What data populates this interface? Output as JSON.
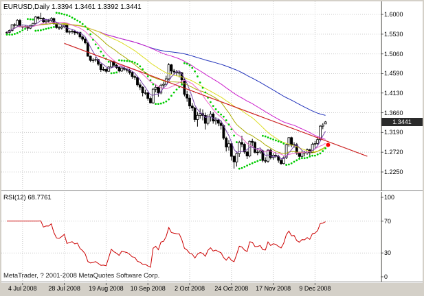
{
  "main": {
    "title": "EURUSD,Daily 1.3394 1.3461 1.3392 1.3441",
    "current_price": "1.3441"
  },
  "rsi": {
    "label": "RSI(12) 68.7761"
  },
  "footer": {
    "copyright": "MetaTrader, ? 2001-2008 MetaQuotes Software Corp."
  },
  "colors": {
    "background": "#ffffff",
    "frame": "#d4d0c8",
    "grid": "#c9c9c9",
    "axis_text": "#000000",
    "candle": "#000000",
    "price_tag_bg": "#2b2b2b",
    "price_tag_text": "#ffffff"
  },
  "chart_data": {
    "type": "candlestick",
    "symbol": "EURUSD",
    "timeframe": "Daily",
    "current_bar": {
      "open": 1.3394,
      "high": 1.3461,
      "low": 1.3392,
      "close": 1.3441
    },
    "price_axis": {
      "ticks": [
        1.6,
        1.553,
        1.506,
        1.459,
        1.413,
        1.366,
        1.319,
        1.272,
        1.225
      ],
      "top_price": 1.631,
      "bottom_price": 1.181
    },
    "x_axis": {
      "tick_labels": [
        "4 Jul 2008",
        "28 Jul 2008",
        "19 Aug 2008",
        "10 Sep 2008",
        "2 Oct 2008",
        "24 Oct 2008",
        "17 Nov 2008",
        "9 Dec 2008"
      ],
      "tick_indices": [
        6,
        22,
        38,
        54,
        70,
        86,
        102,
        118
      ]
    },
    "candles": [
      [
        1.556,
        1.56,
        1.552,
        1.5572
      ],
      [
        1.5572,
        1.564,
        1.555,
        1.5616
      ],
      [
        1.5616,
        1.5765,
        1.559,
        1.5755
      ],
      [
        1.5755,
        1.579,
        1.568,
        1.574
      ],
      [
        1.574,
        1.5885,
        1.57,
        1.586
      ],
      [
        1.586,
        1.589,
        1.569,
        1.5708
      ],
      [
        1.5708,
        1.573,
        1.566,
        1.5702
      ],
      [
        1.5702,
        1.5745,
        1.5672,
        1.5713
      ],
      [
        1.5713,
        1.573,
        1.561,
        1.5672
      ],
      [
        1.5672,
        1.5755,
        1.565,
        1.5737
      ],
      [
        1.5737,
        1.5805,
        1.571,
        1.5784
      ],
      [
        1.5784,
        1.596,
        1.577,
        1.5938
      ],
      [
        1.5938,
        1.596,
        1.586,
        1.5905
      ],
      [
        1.5905,
        1.6038,
        1.588,
        1.591
      ],
      [
        1.591,
        1.593,
        1.578,
        1.5824
      ],
      [
        1.5824,
        1.588,
        1.578,
        1.5851
      ],
      [
        1.5851,
        1.589,
        1.58,
        1.585
      ],
      [
        1.585,
        1.5935,
        1.582,
        1.5903
      ],
      [
        1.5903,
        1.5925,
        1.5755,
        1.578
      ],
      [
        1.578,
        1.58,
        1.566,
        1.5686
      ],
      [
        1.5686,
        1.573,
        1.5625,
        1.5676
      ],
      [
        1.5676,
        1.5745,
        1.564,
        1.5706
      ],
      [
        1.5706,
        1.577,
        1.568,
        1.5745
      ],
      [
        1.5745,
        1.576,
        1.5555,
        1.5577
      ],
      [
        1.5577,
        1.562,
        1.552,
        1.5593
      ],
      [
        1.5593,
        1.565,
        1.554,
        1.5603
      ],
      [
        1.5603,
        1.563,
        1.551,
        1.5562
      ],
      [
        1.5562,
        1.56,
        1.552,
        1.5573
      ],
      [
        1.5573,
        1.5585,
        1.542,
        1.5465
      ],
      [
        1.5465,
        1.55,
        1.536,
        1.5411
      ],
      [
        1.5411,
        1.545,
        1.529,
        1.5323
      ],
      [
        1.5323,
        1.534,
        1.4995,
        1.5005
      ],
      [
        1.5005,
        1.502,
        1.487,
        1.4906
      ],
      [
        1.4906,
        1.496,
        1.485,
        1.4914
      ],
      [
        1.4914,
        1.499,
        1.487,
        1.4925
      ],
      [
        1.4925,
        1.494,
        1.478,
        1.4815
      ],
      [
        1.4815,
        1.483,
        1.463,
        1.4687
      ],
      [
        1.4687,
        1.475,
        1.465,
        1.4689
      ],
      [
        1.4689,
        1.473,
        1.46,
        1.4645
      ],
      [
        1.4645,
        1.477,
        1.463,
        1.4748
      ],
      [
        1.4748,
        1.49,
        1.472,
        1.4876
      ],
      [
        1.4876,
        1.491,
        1.475,
        1.479
      ],
      [
        1.479,
        1.482,
        1.47,
        1.4738
      ],
      [
        1.4738,
        1.476,
        1.462,
        1.4652
      ],
      [
        1.4652,
        1.476,
        1.463,
        1.472
      ],
      [
        1.472,
        1.475,
        1.466,
        1.4694
      ],
      [
        1.4694,
        1.472,
        1.462,
        1.4672
      ],
      [
        1.4672,
        1.47,
        1.457,
        1.4617
      ],
      [
        1.4617,
        1.464,
        1.447,
        1.4522
      ],
      [
        1.4522,
        1.456,
        1.444,
        1.45
      ],
      [
        1.45,
        1.452,
        1.428,
        1.4324
      ],
      [
        1.4324,
        1.438,
        1.42,
        1.4268
      ],
      [
        1.4268,
        1.429,
        1.405,
        1.4132
      ],
      [
        1.4132,
        1.421,
        1.408,
        1.4134
      ],
      [
        1.4134,
        1.416,
        1.395,
        1.4001
      ],
      [
        1.4001,
        1.405,
        1.3882,
        1.3895
      ],
      [
        1.3895,
        1.425,
        1.387,
        1.422
      ],
      [
        1.422,
        1.434,
        1.415,
        1.4265
      ],
      [
        1.4265,
        1.428,
        1.404,
        1.413
      ],
      [
        1.413,
        1.435,
        1.41,
        1.4316
      ],
      [
        1.4316,
        1.44,
        1.424,
        1.4336
      ],
      [
        1.4336,
        1.454,
        1.43,
        1.4467
      ],
      [
        1.4467,
        1.484,
        1.443,
        1.4801
      ],
      [
        1.4801,
        1.482,
        1.458,
        1.4652
      ],
      [
        1.4652,
        1.47,
        1.455,
        1.4629
      ],
      [
        1.4629,
        1.468,
        1.454,
        1.4614
      ],
      [
        1.4614,
        1.465,
        1.45,
        1.4613
      ],
      [
        1.4613,
        1.463,
        1.435,
        1.4441
      ],
      [
        1.4441,
        1.447,
        1.405,
        1.41
      ],
      [
        1.41,
        1.418,
        1.392,
        1.4008
      ],
      [
        1.4008,
        1.408,
        1.375,
        1.382
      ],
      [
        1.382,
        1.389,
        1.37,
        1.3772
      ],
      [
        1.3772,
        1.38,
        1.344,
        1.3498
      ],
      [
        1.3498,
        1.368,
        1.333,
        1.3598
      ],
      [
        1.3598,
        1.376,
        1.352,
        1.364
      ],
      [
        1.364,
        1.374,
        1.348,
        1.3596
      ],
      [
        1.3596,
        1.366,
        1.326,
        1.3408
      ],
      [
        1.3408,
        1.362,
        1.336,
        1.3561
      ],
      [
        1.3561,
        1.37,
        1.345,
        1.363
      ],
      [
        1.363,
        1.367,
        1.34,
        1.3462
      ],
      [
        1.3462,
        1.355,
        1.338,
        1.3486
      ],
      [
        1.3486,
        1.352,
        1.334,
        1.341
      ],
      [
        1.341,
        1.348,
        1.326,
        1.3355
      ],
      [
        1.3355,
        1.338,
        1.302,
        1.3055
      ],
      [
        1.3055,
        1.309,
        1.274,
        1.2843
      ],
      [
        1.2843,
        1.301,
        1.276,
        1.2923
      ],
      [
        1.2923,
        1.295,
        1.252,
        1.2623
      ],
      [
        1.2623,
        1.265,
        1.233,
        1.249
      ],
      [
        1.249,
        1.274,
        1.238,
        1.269
      ],
      [
        1.269,
        1.299,
        1.261,
        1.2953
      ],
      [
        1.2953,
        1.311,
        1.284,
        1.291
      ],
      [
        1.291,
        1.295,
        1.268,
        1.2726
      ],
      [
        1.2726,
        1.276,
        1.256,
        1.263
      ],
      [
        1.263,
        1.3,
        1.26,
        1.298
      ],
      [
        1.298,
        1.304,
        1.287,
        1.2955
      ],
      [
        1.2955,
        1.298,
        1.269,
        1.2717
      ],
      [
        1.2717,
        1.282,
        1.265,
        1.2722
      ],
      [
        1.2722,
        1.28,
        1.268,
        1.2755
      ],
      [
        1.2755,
        1.278,
        1.248,
        1.2524
      ],
      [
        1.2524,
        1.26,
        1.246,
        1.2507
      ],
      [
        1.2507,
        1.279,
        1.247,
        1.277
      ],
      [
        1.277,
        1.28,
        1.255,
        1.2592
      ],
      [
        1.2592,
        1.27,
        1.254,
        1.265
      ],
      [
        1.265,
        1.272,
        1.258,
        1.2622
      ],
      [
        1.2622,
        1.266,
        1.247,
        1.2528
      ],
      [
        1.2528,
        1.257,
        1.242,
        1.2451
      ],
      [
        1.2451,
        1.262,
        1.243,
        1.2589
      ],
      [
        1.2589,
        1.292,
        1.256,
        1.2901
      ],
      [
        1.2901,
        1.308,
        1.285,
        1.3068
      ],
      [
        1.3068,
        1.309,
        1.284,
        1.2889
      ],
      [
        1.2889,
        1.296,
        1.283,
        1.29
      ],
      [
        1.29,
        1.294,
        1.266,
        1.2695
      ],
      [
        1.2695,
        1.273,
        1.258,
        1.2621
      ],
      [
        1.2621,
        1.276,
        1.259,
        1.2713
      ],
      [
        1.2713,
        1.275,
        1.262,
        1.2705
      ],
      [
        1.2705,
        1.281,
        1.266,
        1.2778
      ],
      [
        1.2778,
        1.28,
        1.264,
        1.2717
      ],
      [
        1.2717,
        1.295,
        1.27,
        1.2908
      ],
      [
        1.2908,
        1.299,
        1.283,
        1.2928
      ],
      [
        1.2928,
        1.308,
        1.289,
        1.3022
      ],
      [
        1.3022,
        1.337,
        1.3,
        1.334
      ],
      [
        1.334,
        1.341,
        1.327,
        1.3369
      ],
      [
        1.3394,
        1.3461,
        1.3392,
        1.3441
      ]
    ],
    "overlays": {
      "moving_averages": [
        {
          "period": 89,
          "color": "#2233bb"
        },
        {
          "period": 55,
          "color": "#cc22cc"
        },
        {
          "period": 34,
          "color": "#dddd22"
        },
        {
          "period": 21,
          "color": "#aaaa00"
        },
        {
          "period": 13,
          "color": "#ee66cc"
        },
        {
          "period": 5,
          "color": "#7744aa"
        }
      ],
      "parabolic_sar": {
        "step": 0.02,
        "max": 0.2,
        "color": "#00cc00"
      },
      "trendline": {
        "from_index": 22,
        "from_price": 1.531,
        "to_index": 138,
        "to_price": 1.2625,
        "color": "#cc2222"
      },
      "signal_dot": {
        "index": 123,
        "price": 1.2895,
        "color": "#ff0000"
      }
    },
    "rsi_panel": {
      "type": "line",
      "period": 12,
      "current_value": 68.7761,
      "color": "#cc0000",
      "scale_ticks": [
        100,
        70,
        30,
        0
      ],
      "levels": [
        30,
        70
      ],
      "range": [
        0,
        100
      ]
    }
  }
}
